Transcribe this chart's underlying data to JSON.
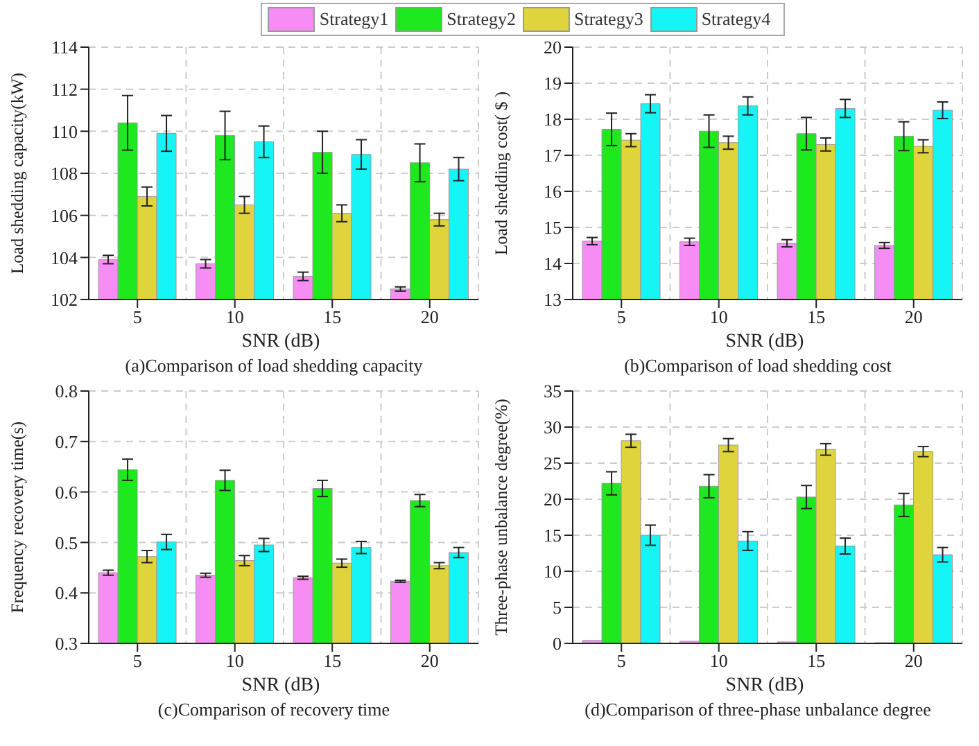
{
  "chart_data": [
    {
      "type": "bar",
      "title": "(a)Comparison of load shedding capacity",
      "xlabel": "SNR (dB)",
      "ylabel": "Load shedding capacity(kW)",
      "categories": [
        "5",
        "10",
        "15",
        "20"
      ],
      "ylim": [
        102,
        114
      ],
      "yticks": [
        102,
        104,
        106,
        108,
        110,
        112,
        114
      ],
      "grid": true,
      "legend": "top",
      "series": [
        {
          "name": "Strategy1",
          "color": "#f78cf5",
          "values": [
            103.9,
            103.7,
            103.1,
            102.5
          ],
          "errors": [
            0.2,
            0.2,
            0.2,
            0.1
          ]
        },
        {
          "name": "Strategy2",
          "color": "#1ee81e",
          "values": [
            110.4,
            109.8,
            109.0,
            108.5
          ],
          "errors": [
            1.3,
            1.15,
            1.0,
            0.9
          ]
        },
        {
          "name": "Strategy3",
          "color": "#e0d43c",
          "values": [
            106.9,
            106.5,
            106.1,
            105.8
          ],
          "errors": [
            0.45,
            0.4,
            0.4,
            0.3
          ]
        },
        {
          "name": "Strategy4",
          "color": "#16f5f5",
          "values": [
            109.9,
            109.5,
            108.9,
            108.2
          ],
          "errors": [
            0.85,
            0.75,
            0.7,
            0.55
          ]
        }
      ]
    },
    {
      "type": "bar",
      "title": "(b)Comparison of load shedding cost",
      "xlabel": "SNR (dB)",
      "ylabel": "Load shedding cost( $ )",
      "categories": [
        "5",
        "10",
        "15",
        "20"
      ],
      "ylim": [
        13,
        20
      ],
      "yticks": [
        13,
        14,
        15,
        16,
        17,
        18,
        19,
        20
      ],
      "grid": true,
      "series": [
        {
          "color": "#f78cf5",
          "values": [
            14.62,
            14.6,
            14.56,
            14.5
          ],
          "errors": [
            0.1,
            0.1,
            0.1,
            0.08
          ]
        },
        {
          "color": "#1ee81e",
          "values": [
            17.72,
            17.67,
            17.6,
            17.53
          ],
          "errors": [
            0.45,
            0.45,
            0.45,
            0.4
          ]
        },
        {
          "color": "#e0d43c",
          "values": [
            17.42,
            17.35,
            17.3,
            17.25
          ],
          "errors": [
            0.18,
            0.18,
            0.18,
            0.18
          ]
        },
        {
          "color": "#16f5f5",
          "values": [
            18.43,
            18.37,
            18.3,
            18.25
          ],
          "errors": [
            0.25,
            0.25,
            0.25,
            0.23
          ]
        }
      ]
    },
    {
      "type": "bar",
      "title": "(c)Comparison of recovery time",
      "xlabel": "SNR (dB)",
      "ylabel": "Frequency recovery time(s)",
      "categories": [
        "5",
        "10",
        "15",
        "20"
      ],
      "ylim": [
        0.3,
        0.8
      ],
      "yticks": [
        0.3,
        0.4,
        0.5,
        0.6,
        0.7,
        0.8
      ],
      "grid": true,
      "series": [
        {
          "color": "#f78cf5",
          "values": [
            0.44,
            0.435,
            0.43,
            0.423
          ],
          "errors": [
            0.005,
            0.004,
            0.003,
            0.002
          ]
        },
        {
          "color": "#1ee81e",
          "values": [
            0.644,
            0.623,
            0.607,
            0.583
          ],
          "errors": [
            0.021,
            0.02,
            0.016,
            0.012
          ]
        },
        {
          "color": "#e0d43c",
          "values": [
            0.472,
            0.464,
            0.459,
            0.454
          ],
          "errors": [
            0.012,
            0.01,
            0.008,
            0.006
          ]
        },
        {
          "color": "#16f5f5",
          "values": [
            0.501,
            0.495,
            0.49,
            0.48
          ],
          "errors": [
            0.015,
            0.013,
            0.012,
            0.01
          ]
        }
      ]
    },
    {
      "type": "bar",
      "title": "(d)Comparison of three-phase unbalance degree",
      "xlabel": "SNR (dB)",
      "ylabel": "Three-phase unbalance degree(%)",
      "categories": [
        "5",
        "10",
        "15",
        "20"
      ],
      "ylim": [
        0,
        35
      ],
      "yticks": [
        0,
        5,
        10,
        15,
        20,
        25,
        30,
        35
      ],
      "grid": true,
      "series": [
        {
          "color": "#f78cf5",
          "values": [
            0.4,
            0.3,
            0.2,
            0.1
          ]
        },
        {
          "color": "#1ee81e",
          "values": [
            22.2,
            21.8,
            20.3,
            19.2
          ],
          "errors": [
            1.6,
            1.6,
            1.6,
            1.6
          ]
        },
        {
          "color": "#e0d43c",
          "values": [
            28.1,
            27.5,
            26.9,
            26.6
          ],
          "errors": [
            0.9,
            0.9,
            0.8,
            0.7
          ]
        },
        {
          "color": "#16f5f5",
          "values": [
            15.0,
            14.2,
            13.5,
            12.3
          ],
          "errors": [
            1.4,
            1.3,
            1.1,
            1.0
          ]
        }
      ]
    }
  ]
}
